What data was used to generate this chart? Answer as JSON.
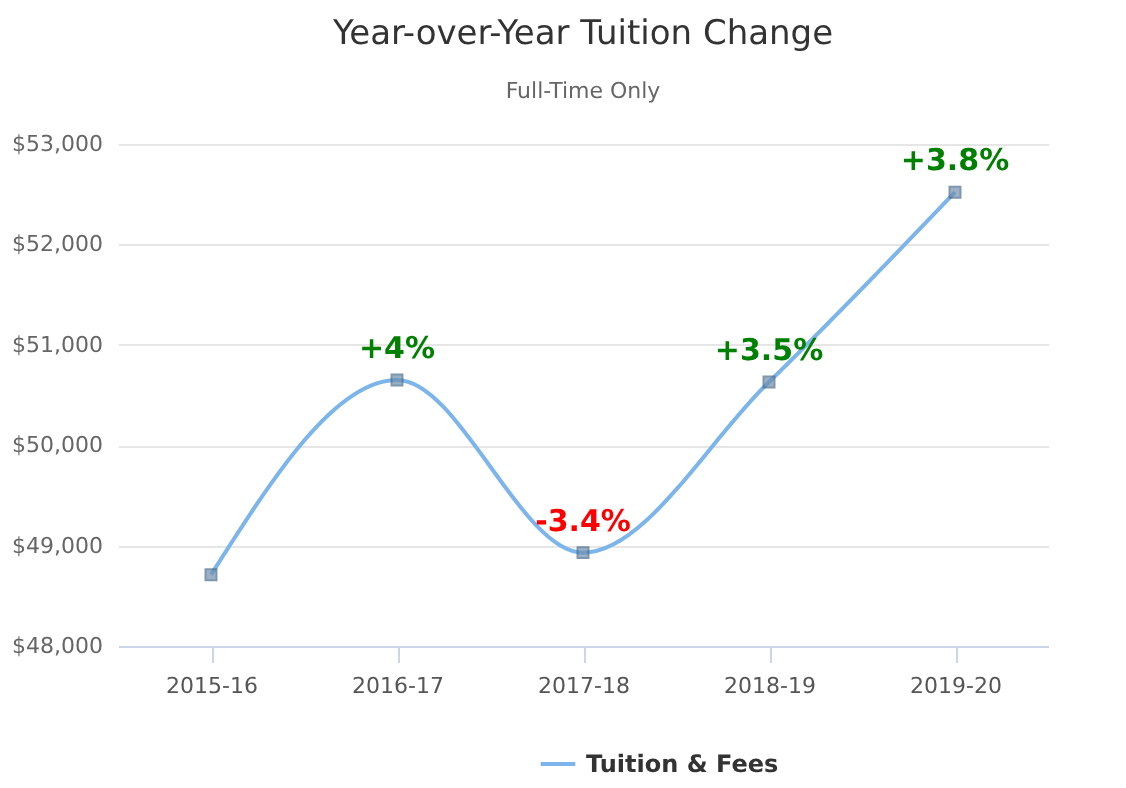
{
  "chart_data": {
    "type": "line",
    "title": "Year-over-Year Tuition Change",
    "subtitle": "Full-Time Only",
    "categories": [
      "2015-16",
      "2016-17",
      "2017-18",
      "2018-19",
      "2019-20"
    ],
    "series": [
      {
        "name": "Tuition & Fees",
        "color": "#7cb5ec",
        "values": [
          48710,
          50650,
          48930,
          50630,
          52520
        ]
      }
    ],
    "annotations": [
      {
        "text": "+4%",
        "x": "2016-17",
        "y": 50650
      },
      {
        "text": "-3.4%",
        "x": "2017-18",
        "y": 48930
      },
      {
        "text": "+3.5%",
        "x": "2018-19",
        "y": 50630
      },
      {
        "text": "+3.8%",
        "x": "2019-20",
        "y": 52520
      }
    ],
    "ylim": [
      48000,
      53000
    ],
    "yticks": [
      {
        "value": 48000,
        "label": "$48,000"
      },
      {
        "value": 49000,
        "label": "$49,000"
      },
      {
        "value": 50000,
        "label": "$50,000"
      },
      {
        "value": 51000,
        "label": "$51,000"
      },
      {
        "value": 52000,
        "label": "$52,000"
      },
      {
        "value": 53000,
        "label": "$53,000"
      }
    ],
    "grid": "y",
    "legend": "bottom",
    "marker": "square",
    "line_style": "solid"
  }
}
